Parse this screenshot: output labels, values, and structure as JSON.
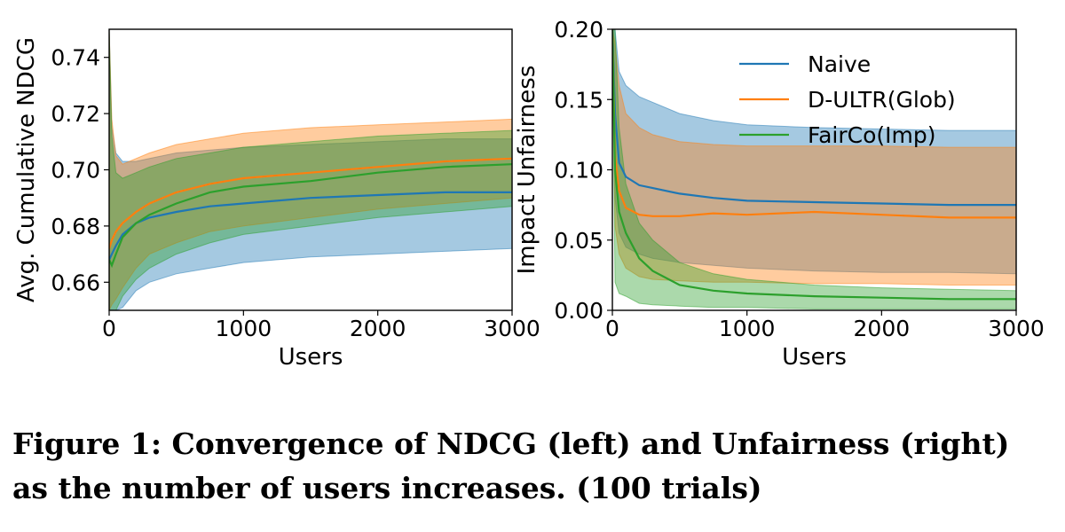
{
  "colors": {
    "naive": "#1f77b4",
    "dultr": "#ff7f0e",
    "fairco": "#2ca02c"
  },
  "caption": {
    "line1": "Figure 1: Convergence of NDCG (left) and Unfairness (right)",
    "line2": "as the number of users increases. (100 trials)"
  },
  "chart_data": [
    {
      "type": "line",
      "title": "",
      "xlabel": "Users",
      "ylabel": "Avg. Cumulative NDCG",
      "xlim": [
        0,
        3000
      ],
      "ylim": [
        0.65,
        0.75
      ],
      "xticks": [
        0,
        1000,
        2000,
        3000
      ],
      "xtick_labels": [
        "0",
        "1000",
        "2000",
        "3000"
      ],
      "yticks": [
        0.66,
        0.68,
        0.7,
        0.72,
        0.74
      ],
      "ytick_labels": [
        "0.66",
        "0.68",
        "0.70",
        "0.72",
        "0.74"
      ],
      "grid": false,
      "x": [
        0,
        20,
        50,
        100,
        200,
        300,
        500,
        750,
        1000,
        1500,
        2000,
        2500,
        3000
      ],
      "series": [
        {
          "name": "Naive",
          "color_key": "naive",
          "mean": [
            0.668,
            0.67,
            0.673,
            0.677,
            0.681,
            0.683,
            0.685,
            0.687,
            0.688,
            0.69,
            0.691,
            0.692,
            0.692
          ],
          "upper": [
            0.75,
            0.715,
            0.706,
            0.703,
            0.703,
            0.704,
            0.706,
            0.707,
            0.708,
            0.709,
            0.71,
            0.711,
            0.711
          ],
          "lower": [
            0.65,
            0.65,
            0.65,
            0.651,
            0.657,
            0.66,
            0.663,
            0.665,
            0.667,
            0.669,
            0.67,
            0.671,
            0.672
          ]
        },
        {
          "name": "D-ULTR(Glob)",
          "color_key": "dultr",
          "mean": [
            0.672,
            0.675,
            0.678,
            0.681,
            0.685,
            0.688,
            0.692,
            0.695,
            0.697,
            0.699,
            0.701,
            0.703,
            0.704
          ],
          "upper": [
            0.75,
            0.718,
            0.705,
            0.702,
            0.704,
            0.706,
            0.709,
            0.711,
            0.713,
            0.715,
            0.716,
            0.717,
            0.718
          ],
          "lower": [
            0.65,
            0.652,
            0.654,
            0.658,
            0.665,
            0.67,
            0.674,
            0.678,
            0.68,
            0.683,
            0.686,
            0.688,
            0.69
          ]
        },
        {
          "name": "FairCo(Imp)",
          "color_key": "fairco",
          "mean": [
            0.668,
            0.666,
            0.67,
            0.676,
            0.681,
            0.684,
            0.688,
            0.692,
            0.694,
            0.696,
            0.699,
            0.701,
            0.702
          ],
          "upper": [
            0.75,
            0.712,
            0.699,
            0.697,
            0.699,
            0.701,
            0.704,
            0.706,
            0.708,
            0.71,
            0.712,
            0.713,
            0.714
          ],
          "lower": [
            0.65,
            0.65,
            0.65,
            0.655,
            0.661,
            0.665,
            0.67,
            0.674,
            0.677,
            0.68,
            0.683,
            0.685,
            0.687
          ]
        }
      ]
    },
    {
      "type": "line",
      "title": "",
      "xlabel": "Users",
      "ylabel": "Impact Unfairness",
      "xlim": [
        0,
        3000
      ],
      "ylim": [
        0,
        0.2
      ],
      "xticks": [
        0,
        1000,
        2000,
        3000
      ],
      "xtick_labels": [
        "0",
        "1000",
        "2000",
        "3000"
      ],
      "yticks": [
        0,
        0.05,
        0.1,
        0.15,
        0.2
      ],
      "ytick_labels": [
        "0.00",
        "0.05",
        "0.10",
        "0.15",
        "0.20"
      ],
      "grid": false,
      "legend": "top-right",
      "x": [
        0,
        20,
        50,
        100,
        200,
        300,
        500,
        750,
        1000,
        1500,
        2000,
        2500,
        3000
      ],
      "series": [
        {
          "name": "Naive",
          "color_key": "naive",
          "mean": [
            0.2,
            0.14,
            0.105,
            0.095,
            0.089,
            0.087,
            0.083,
            0.08,
            0.078,
            0.077,
            0.076,
            0.075,
            0.075
          ],
          "upper": [
            0.2,
            0.2,
            0.17,
            0.16,
            0.152,
            0.148,
            0.14,
            0.135,
            0.132,
            0.13,
            0.129,
            0.128,
            0.128
          ],
          "lower": [
            0.2,
            0.08,
            0.055,
            0.045,
            0.04,
            0.037,
            0.034,
            0.032,
            0.03,
            0.028,
            0.027,
            0.027,
            0.026
          ]
        },
        {
          "name": "D-ULTR(Glob)",
          "color_key": "dultr",
          "mean": [
            0.2,
            0.11,
            0.085,
            0.073,
            0.068,
            0.067,
            0.067,
            0.069,
            0.068,
            0.07,
            0.068,
            0.066,
            0.066
          ],
          "upper": [
            0.2,
            0.19,
            0.16,
            0.14,
            0.13,
            0.125,
            0.12,
            0.118,
            0.117,
            0.117,
            0.117,
            0.116,
            0.116
          ],
          "lower": [
            0.2,
            0.06,
            0.04,
            0.03,
            0.024,
            0.022,
            0.021,
            0.02,
            0.02,
            0.019,
            0.019,
            0.018,
            0.018
          ]
        },
        {
          "name": "FairCo(Imp)",
          "color_key": "fairco",
          "mean": [
            0.2,
            0.1,
            0.07,
            0.055,
            0.037,
            0.028,
            0.018,
            0.014,
            0.012,
            0.01,
            0.009,
            0.008,
            0.008
          ],
          "upper": [
            0.2,
            0.2,
            0.13,
            0.09,
            0.062,
            0.05,
            0.034,
            0.026,
            0.022,
            0.018,
            0.016,
            0.015,
            0.014
          ],
          "lower": [
            0.2,
            0.02,
            0.012,
            0.01,
            0.005,
            0.004,
            0.003,
            0.002,
            0.002,
            0.001,
            0.001,
            0.001,
            0.001
          ]
        }
      ]
    }
  ]
}
